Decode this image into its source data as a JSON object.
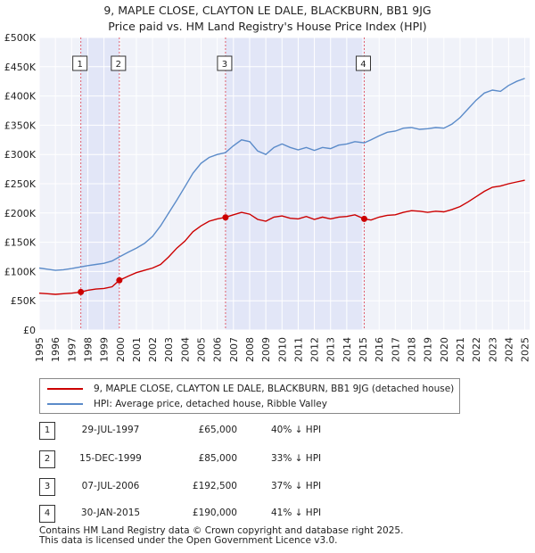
{
  "title_lines": [
    "9, MAPLE CLOSE, CLAYTON LE DALE, BLACKBURN, BB1 9JG",
    "Price paid vs. HM Land Registry's House Price Index (HPI)"
  ],
  "chart_data": {
    "type": "line",
    "title": "9, MAPLE CLOSE, CLAYTON LE DALE, BLACKBURN, BB1 9JG — Price paid vs. HM Land Registry's House Price Index (HPI)",
    "xlabel": "",
    "ylabel": "",
    "xlim": [
      1995,
      2025.3
    ],
    "ylim": [
      0,
      500000
    ],
    "x_ticks": [
      1995,
      1996,
      1997,
      1998,
      1999,
      2000,
      2001,
      2002,
      2003,
      2004,
      2005,
      2006,
      2007,
      2008,
      2009,
      2010,
      2011,
      2012,
      2013,
      2014,
      2015,
      2016,
      2017,
      2018,
      2019,
      2020,
      2021,
      2022,
      2023,
      2024,
      2025
    ],
    "y_ticks": [
      0,
      50000,
      100000,
      150000,
      200000,
      250000,
      300000,
      350000,
      400000,
      450000,
      500000
    ],
    "y_tick_labels": [
      "£0",
      "£50K",
      "£100K",
      "£150K",
      "£200K",
      "£250K",
      "£300K",
      "£350K",
      "£400K",
      "£450K",
      "£500K"
    ],
    "grid": true,
    "series": [
      {
        "name": "9, MAPLE CLOSE, CLAYTON LE DALE, BLACKBURN, BB1 9JG (detached house)",
        "color": "#cc0000",
        "x": [
          1995.0,
          1995.5,
          1996.0,
          1996.5,
          1997.0,
          1997.57,
          1998.0,
          1998.5,
          1999.0,
          1999.5,
          1999.95,
          2000.5,
          2001.0,
          2001.5,
          2002.0,
          2002.5,
          2003.0,
          2003.5,
          2004.0,
          2004.5,
          2005.0,
          2005.5,
          2006.0,
          2006.5,
          2007.0,
          2007.5,
          2008.0,
          2008.5,
          2009.0,
          2009.5,
          2010.0,
          2010.5,
          2011.0,
          2011.5,
          2012.0,
          2012.5,
          2013.0,
          2013.5,
          2014.0,
          2014.5,
          2015.08,
          2015.5,
          2016.0,
          2016.5,
          2017.0,
          2017.5,
          2018.0,
          2018.5,
          2019.0,
          2019.5,
          2020.0,
          2020.5,
          2021.0,
          2021.5,
          2022.0,
          2022.5,
          2023.0,
          2023.5,
          2024.0,
          2024.5,
          2025.0
        ],
        "values": [
          63000,
          62000,
          61000,
          62000,
          63000,
          65000,
          68000,
          70000,
          71000,
          74000,
          85000,
          92000,
          98000,
          102000,
          106000,
          112000,
          125000,
          140000,
          152000,
          168000,
          178000,
          186000,
          190000,
          192500,
          197000,
          201000,
          198000,
          189000,
          186000,
          193000,
          195000,
          191000,
          190000,
          194000,
          189000,
          193000,
          190000,
          193000,
          194000,
          197000,
          190000,
          188000,
          193000,
          196000,
          197000,
          201000,
          204000,
          203000,
          201000,
          203000,
          202000,
          206000,
          211000,
          219000,
          228000,
          237000,
          244000,
          246000,
          250000,
          253000,
          256000
        ]
      },
      {
        "name": "HPI: Average price, detached house, Ribble Valley",
        "color": "#5b8bc9",
        "x": [
          1995.0,
          1995.5,
          1996.0,
          1996.5,
          1997.0,
          1997.57,
          1998.0,
          1998.5,
          1999.0,
          1999.5,
          1999.95,
          2000.5,
          2001.0,
          2001.5,
          2002.0,
          2002.5,
          2003.0,
          2003.5,
          2004.0,
          2004.5,
          2005.0,
          2005.5,
          2006.0,
          2006.5,
          2007.0,
          2007.5,
          2008.0,
          2008.5,
          2009.0,
          2009.5,
          2010.0,
          2010.5,
          2011.0,
          2011.5,
          2012.0,
          2012.5,
          2013.0,
          2013.5,
          2014.0,
          2014.5,
          2015.08,
          2015.5,
          2016.0,
          2016.5,
          2017.0,
          2017.5,
          2018.0,
          2018.5,
          2019.0,
          2019.5,
          2020.0,
          2020.5,
          2021.0,
          2021.5,
          2022.0,
          2022.5,
          2023.0,
          2023.5,
          2024.0,
          2024.5,
          2025.0
        ],
        "values": [
          106000,
          104000,
          102000,
          103000,
          105000,
          108000,
          110000,
          112000,
          114000,
          118000,
          125000,
          133000,
          140000,
          148000,
          160000,
          178000,
          200000,
          222000,
          245000,
          268000,
          285000,
          295000,
          300000,
          303000,
          315000,
          325000,
          322000,
          306000,
          300000,
          312000,
          318000,
          312000,
          308000,
          312000,
          307000,
          312000,
          310000,
          316000,
          318000,
          322000,
          320000,
          325000,
          332000,
          338000,
          340000,
          345000,
          346000,
          343000,
          344000,
          346000,
          345000,
          352000,
          363000,
          378000,
          393000,
          405000,
          410000,
          408000,
          418000,
          425000,
          430000
        ]
      }
    ],
    "sales": [
      {
        "label": "1",
        "x": 1997.57,
        "value": 65000
      },
      {
        "label": "2",
        "x": 1999.95,
        "value": 85000
      },
      {
        "label": "3",
        "x": 2006.51,
        "value": 192500
      },
      {
        "label": "4",
        "x": 2015.08,
        "value": 190000
      }
    ],
    "shaded_ranges": [
      [
        1997.57,
        1999.95
      ],
      [
        2006.51,
        2015.08
      ]
    ],
    "legend_position": "below"
  },
  "legend": {
    "items": [
      {
        "label": "9, MAPLE CLOSE, CLAYTON LE DALE, BLACKBURN, BB1 9JG (detached house)",
        "color": "#cc0000"
      },
      {
        "label": "HPI: Average price, detached house, Ribble Valley",
        "color": "#5b8bc9"
      }
    ]
  },
  "sales_table": [
    {
      "num": "1",
      "date": "29-JUL-1997",
      "price": "£65,000",
      "hpi": "40% ↓ HPI"
    },
    {
      "num": "2",
      "date": "15-DEC-1999",
      "price": "£85,000",
      "hpi": "33% ↓ HPI"
    },
    {
      "num": "3",
      "date": "07-JUL-2006",
      "price": "£192,500",
      "hpi": "37% ↓ HPI"
    },
    {
      "num": "4",
      "date": "30-JAN-2015",
      "price": "£190,000",
      "hpi": "41% ↓ HPI"
    }
  ],
  "footer_lines": [
    "Contains HM Land Registry data © Crown copyright and database right 2025.",
    "This data is licensed under the Open Government Licence v3.0."
  ]
}
